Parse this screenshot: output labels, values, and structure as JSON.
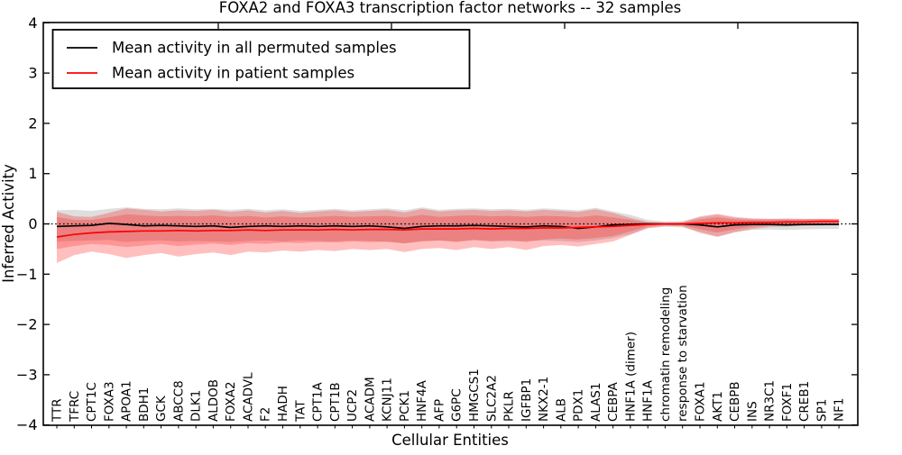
{
  "title": "FOXA2 and FOXA3 transcription factor networks -- 32 samples",
  "axes": {
    "xlabel": "Cellular Entities",
    "ylabel": "Inferred Activity",
    "ylim": [
      -4,
      4
    ],
    "yticks": [
      4,
      3,
      2,
      1,
      0,
      -1,
      -2,
      -3,
      -4
    ],
    "ytick_labels": [
      "4",
      "3",
      "2",
      "1",
      "0",
      "−1",
      "−2",
      "−3",
      "−4"
    ]
  },
  "legend": {
    "entries": [
      {
        "label": "Mean activity in all permuted samples",
        "color": "#000000"
      },
      {
        "label": "Mean activity in patient samples",
        "color": "#ff0000"
      }
    ]
  },
  "chart_data": {
    "type": "line",
    "title": "FOXA2 and FOXA3 transcription factor networks -- 32 samples",
    "xlabel": "Cellular Entities",
    "ylabel": "Inferred Activity",
    "ylim": [
      -4,
      4
    ],
    "grid": false,
    "legend_position": "upper left",
    "zero_line": {
      "y": 0,
      "color": "#000000",
      "style": "dotted"
    },
    "categories": [
      "TTR",
      "TFRC",
      "CPT1C",
      "FOXA3",
      "APOA1",
      "BDH1",
      "GCK",
      "ABCC8",
      "DLK1",
      "ALDOB",
      "FOXA2",
      "ACADVL",
      "F2",
      "HADH",
      "TAT",
      "CPT1A",
      "CPT1B",
      "UCP2",
      "ACADM",
      "KCNJ11",
      "PCK1",
      "HNF4A",
      "AFP",
      "G6PC",
      "HMGCS1",
      "SLC2A2",
      "PKLR",
      "IGFBP1",
      "NKX2-1",
      "ALB",
      "PDX1",
      "ALAS1",
      "CEBPA",
      "HNF1A (dimer)",
      "HNF1A",
      "chromatin remodeling",
      "response to starvation",
      "FOXA1",
      "AKT1",
      "CEBPB",
      "INS",
      "NR3C1",
      "FOXF1",
      "CREB1",
      "SP1",
      "NF1"
    ],
    "series": [
      {
        "name": "Mean activity in all permuted samples",
        "color": "#000000",
        "values": [
          -0.05,
          -0.04,
          -0.03,
          0.01,
          -0.01,
          -0.04,
          -0.03,
          -0.04,
          -0.05,
          -0.04,
          -0.07,
          -0.05,
          -0.04,
          -0.05,
          -0.04,
          -0.05,
          -0.04,
          -0.05,
          -0.04,
          -0.06,
          -0.09,
          -0.05,
          -0.04,
          -0.04,
          -0.03,
          -0.04,
          -0.05,
          -0.06,
          -0.04,
          -0.05,
          -0.09,
          -0.06,
          -0.02,
          -0.01,
          0.0,
          0.0,
          0.0,
          -0.02,
          -0.06,
          -0.02,
          -0.01,
          -0.01,
          -0.02,
          -0.01,
          -0.01,
          -0.01
        ]
      },
      {
        "name": "Mean activity in patient samples",
        "color": "#ff0000",
        "values": [
          -0.26,
          -0.21,
          -0.18,
          -0.16,
          -0.15,
          -0.14,
          -0.14,
          -0.13,
          -0.14,
          -0.13,
          -0.13,
          -0.12,
          -0.13,
          -0.12,
          -0.12,
          -0.12,
          -0.11,
          -0.12,
          -0.11,
          -0.11,
          -0.12,
          -0.1,
          -0.1,
          -0.1,
          -0.09,
          -0.1,
          -0.09,
          -0.09,
          -0.08,
          -0.08,
          -0.07,
          -0.06,
          -0.05,
          -0.03,
          -0.01,
          0.0,
          0.0,
          0.01,
          0.02,
          0.02,
          0.03,
          0.03,
          0.04,
          0.04,
          0.05,
          0.05
        ]
      }
    ],
    "bands": [
      {
        "name": "permuted samples spread",
        "fill": "rgba(0,0,0,0.13)",
        "upper": [
          0.27,
          0.28,
          0.26,
          0.3,
          0.33,
          0.3,
          0.29,
          0.31,
          0.29,
          0.3,
          0.28,
          0.3,
          0.27,
          0.29,
          0.26,
          0.28,
          0.3,
          0.27,
          0.29,
          0.31,
          0.27,
          0.33,
          0.28,
          0.3,
          0.31,
          0.29,
          0.3,
          0.28,
          0.31,
          0.29,
          0.27,
          0.32,
          0.25,
          0.18,
          0.08,
          0.05,
          0.06,
          0.13,
          0.18,
          0.12,
          0.1,
          0.1,
          0.11,
          0.1,
          0.1,
          0.09
        ],
        "lower": [
          -0.35,
          -0.34,
          -0.33,
          -0.32,
          -0.36,
          -0.34,
          -0.33,
          -0.35,
          -0.34,
          -0.35,
          -0.36,
          -0.34,
          -0.33,
          -0.35,
          -0.33,
          -0.34,
          -0.35,
          -0.33,
          -0.34,
          -0.36,
          -0.38,
          -0.34,
          -0.33,
          -0.35,
          -0.32,
          -0.34,
          -0.35,
          -0.34,
          -0.33,
          -0.34,
          -0.36,
          -0.33,
          -0.28,
          -0.2,
          -0.09,
          -0.06,
          -0.07,
          -0.16,
          -0.25,
          -0.16,
          -0.12,
          -0.11,
          -0.12,
          -0.11,
          -0.1,
          -0.1
        ]
      },
      {
        "name": "patient samples outer spread",
        "fill": "rgba(255,0,0,0.25)",
        "upper": [
          0.24,
          0.15,
          0.14,
          0.22,
          0.31,
          0.28,
          0.25,
          0.27,
          0.26,
          0.28,
          0.24,
          0.27,
          0.23,
          0.26,
          0.22,
          0.25,
          0.27,
          0.24,
          0.26,
          0.28,
          0.23,
          0.3,
          0.25,
          0.27,
          0.28,
          0.26,
          0.27,
          0.25,
          0.28,
          0.26,
          0.24,
          0.29,
          0.22,
          0.12,
          0.04,
          0.02,
          0.03,
          0.15,
          0.2,
          0.14,
          0.11,
          0.1,
          0.1,
          0.1,
          0.1,
          0.1
        ],
        "lower": [
          -0.78,
          -0.62,
          -0.55,
          -0.6,
          -0.68,
          -0.62,
          -0.58,
          -0.65,
          -0.6,
          -0.57,
          -0.62,
          -0.55,
          -0.57,
          -0.53,
          -0.55,
          -0.52,
          -0.54,
          -0.5,
          -0.52,
          -0.5,
          -0.56,
          -0.5,
          -0.48,
          -0.52,
          -0.46,
          -0.5,
          -0.46,
          -0.52,
          -0.44,
          -0.42,
          -0.45,
          -0.4,
          -0.35,
          -0.22,
          -0.08,
          -0.04,
          -0.05,
          -0.18,
          -0.26,
          -0.17,
          -0.1,
          -0.06,
          -0.05,
          -0.04,
          -0.03,
          -0.02
        ]
      },
      {
        "name": "patient samples inner spread",
        "fill": "rgba(255,0,0,0.22)",
        "upper": [
          0.14,
          0.08,
          0.08,
          0.13,
          0.19,
          0.17,
          0.15,
          0.16,
          0.15,
          0.17,
          0.14,
          0.16,
          0.13,
          0.15,
          0.13,
          0.14,
          0.16,
          0.14,
          0.15,
          0.16,
          0.13,
          0.18,
          0.14,
          0.16,
          0.17,
          0.15,
          0.16,
          0.14,
          0.16,
          0.15,
          0.13,
          0.17,
          0.13,
          0.08,
          0.02,
          0.01,
          0.02,
          0.09,
          0.13,
          0.09,
          0.08,
          0.08,
          0.08,
          0.08,
          0.09,
          0.09
        ],
        "lower": [
          -0.5,
          -0.44,
          -0.4,
          -0.42,
          -0.46,
          -0.43,
          -0.4,
          -0.44,
          -0.41,
          -0.39,
          -0.42,
          -0.38,
          -0.4,
          -0.37,
          -0.38,
          -0.36,
          -0.37,
          -0.35,
          -0.36,
          -0.35,
          -0.39,
          -0.35,
          -0.33,
          -0.36,
          -0.32,
          -0.35,
          -0.32,
          -0.36,
          -0.31,
          -0.29,
          -0.31,
          -0.28,
          -0.24,
          -0.15,
          -0.05,
          -0.02,
          -0.03,
          -0.11,
          -0.17,
          -0.11,
          -0.06,
          -0.03,
          -0.02,
          -0.01,
          0.0,
          0.01
        ]
      }
    ]
  }
}
